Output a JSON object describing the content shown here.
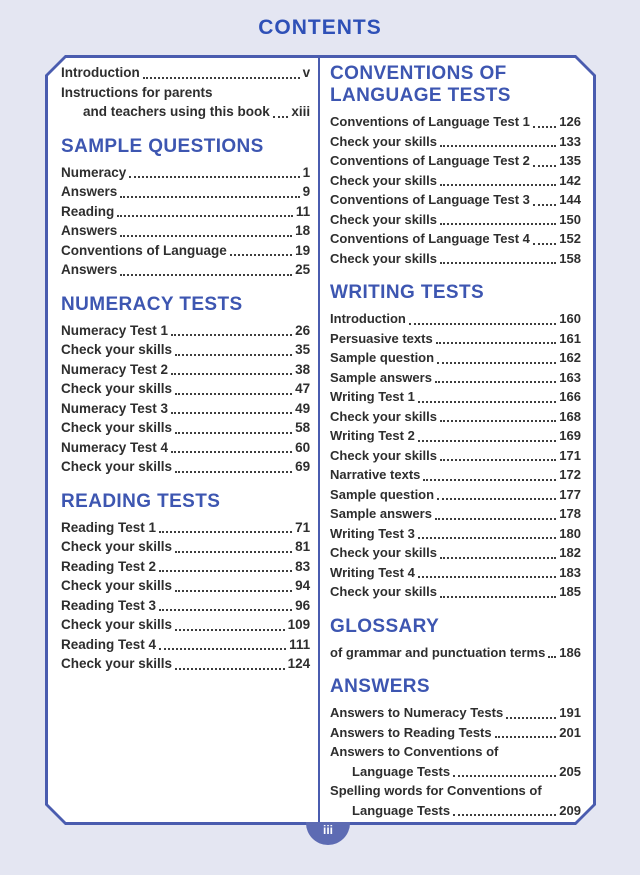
{
  "page_title": "CONTENTS",
  "page_number": "iii",
  "colors": {
    "background": "#e4e6f2",
    "panel_background": "#ffffff",
    "border_blue": "#4a5caf",
    "heading_blue": "#3d56b1",
    "title_blue": "#2e50b7",
    "text_dark": "#2e2e2e",
    "badge_blue": "#5d6bb3",
    "badge_text": "#ffffff"
  },
  "columns": {
    "left": {
      "sections": [
        {
          "heading": "",
          "entries": [
            {
              "label": "Introduction",
              "page": "v"
            },
            {
              "line1": "Instructions for parents",
              "label": "and teachers using this book",
              "page": "xiii"
            }
          ]
        },
        {
          "heading": "SAMPLE QUESTIONS",
          "entries": [
            {
              "label": "Numeracy",
              "page": "1"
            },
            {
              "label": "Answers",
              "page": "9"
            },
            {
              "label": "Reading",
              "page": "11"
            },
            {
              "label": "Answers",
              "page": "18"
            },
            {
              "label": "Conventions of Language",
              "page": "19"
            },
            {
              "label": "Answers",
              "page": "25"
            }
          ]
        },
        {
          "heading": "NUMERACY TESTS",
          "entries": [
            {
              "label": "Numeracy Test 1",
              "page": "26"
            },
            {
              "label": "Check your skills",
              "page": "35"
            },
            {
              "label": "Numeracy Test 2",
              "page": "38"
            },
            {
              "label": "Check your skills",
              "page": "47"
            },
            {
              "label": "Numeracy Test 3",
              "page": "49"
            },
            {
              "label": "Check your skills",
              "page": "58"
            },
            {
              "label": "Numeracy Test 4",
              "page": "60"
            },
            {
              "label": "Check your skills",
              "page": "69"
            }
          ]
        },
        {
          "heading": "READING TESTS",
          "entries": [
            {
              "label": "Reading Test 1",
              "page": "71"
            },
            {
              "label": "Check your skills",
              "page": "81"
            },
            {
              "label": "Reading Test 2",
              "page": "83"
            },
            {
              "label": "Check your skills",
              "page": "94"
            },
            {
              "label": "Reading Test 3",
              "page": "96"
            },
            {
              "label": "Check your skills",
              "page": "109"
            },
            {
              "label": "Reading Test 4",
              "page": "111"
            },
            {
              "label": "Check your skills",
              "page": "124"
            }
          ]
        }
      ]
    },
    "right": {
      "sections": [
        {
          "heading": "CONVENTIONS OF LANGUAGE TESTS",
          "entries": [
            {
              "label": "Conventions of Language Test 1",
              "page": "126"
            },
            {
              "label": "Check your skills",
              "page": "133"
            },
            {
              "label": "Conventions of Language Test 2",
              "page": "135"
            },
            {
              "label": "Check your skills",
              "page": "142"
            },
            {
              "label": "Conventions of Language Test 3",
              "page": "144"
            },
            {
              "label": "Check your skills",
              "page": "150"
            },
            {
              "label": "Conventions of Language Test 4",
              "page": "152"
            },
            {
              "label": "Check your skills",
              "page": "158"
            }
          ]
        },
        {
          "heading": "WRITING TESTS",
          "entries": [
            {
              "label": "Introduction",
              "page": "160"
            },
            {
              "label": "Persuasive texts",
              "page": "161"
            },
            {
              "label": "Sample question",
              "page": "162"
            },
            {
              "label": "Sample answers",
              "page": "163"
            },
            {
              "label": "Writing Test 1",
              "page": "166"
            },
            {
              "label": "Check your skills",
              "page": "168"
            },
            {
              "label": "Writing Test 2",
              "page": "169"
            },
            {
              "label": "Check your skills",
              "page": "171"
            },
            {
              "label": "Narrative texts",
              "page": "172"
            },
            {
              "label": "Sample question",
              "page": "177"
            },
            {
              "label": "Sample answers",
              "page": "178"
            },
            {
              "label": "Writing Test 3",
              "page": "180"
            },
            {
              "label": "Check your skills",
              "page": "182"
            },
            {
              "label": "Writing Test 4",
              "page": "183"
            },
            {
              "label": "Check your skills",
              "page": "185"
            }
          ]
        },
        {
          "heading": "GLOSSARY",
          "entries": [
            {
              "label": "of grammar and punctuation terms",
              "page": "186"
            }
          ]
        },
        {
          "heading": "ANSWERS",
          "entries": [
            {
              "label": "Answers to Numeracy Tests",
              "page": "191"
            },
            {
              "label": "Answers to Reading Tests",
              "page": "201"
            },
            {
              "line1": "Answers to Conventions of",
              "label": "Language Tests",
              "page": "205"
            },
            {
              "line1": "Spelling words for Conventions of",
              "label": "Language Tests",
              "page": "209"
            }
          ]
        }
      ]
    }
  }
}
